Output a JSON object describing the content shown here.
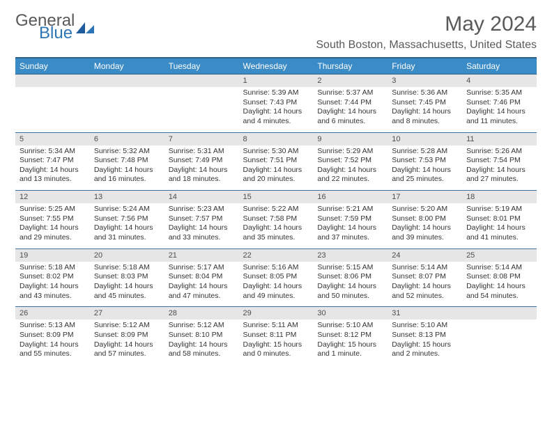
{
  "brand": {
    "part1": "General",
    "part2": "Blue",
    "logo_color": "#2e75b6",
    "text_color": "#595959"
  },
  "title": "May 2024",
  "location": "South Boston, Massachusetts, United States",
  "colors": {
    "header_bg": "#3b8bc7",
    "header_border": "#2e5f86",
    "daynum_bg": "#e6e6e6",
    "page_bg": "#ffffff",
    "text": "#333333"
  },
  "fonts": {
    "title_size": 30,
    "location_size": 16,
    "dow_size": 12,
    "daynum_size": 11,
    "detail_size": 10.5
  },
  "days_of_week": [
    "Sunday",
    "Monday",
    "Tuesday",
    "Wednesday",
    "Thursday",
    "Friday",
    "Saturday"
  ],
  "weeks": [
    {
      "nums": [
        "",
        "",
        "",
        "1",
        "2",
        "3",
        "4"
      ],
      "details": [
        null,
        null,
        null,
        {
          "sunrise": "Sunrise: 5:39 AM",
          "sunset": "Sunset: 7:43 PM",
          "day1": "Daylight: 14 hours",
          "day2": "and 4 minutes."
        },
        {
          "sunrise": "Sunrise: 5:37 AM",
          "sunset": "Sunset: 7:44 PM",
          "day1": "Daylight: 14 hours",
          "day2": "and 6 minutes."
        },
        {
          "sunrise": "Sunrise: 5:36 AM",
          "sunset": "Sunset: 7:45 PM",
          "day1": "Daylight: 14 hours",
          "day2": "and 8 minutes."
        },
        {
          "sunrise": "Sunrise: 5:35 AM",
          "sunset": "Sunset: 7:46 PM",
          "day1": "Daylight: 14 hours",
          "day2": "and 11 minutes."
        }
      ]
    },
    {
      "nums": [
        "5",
        "6",
        "7",
        "8",
        "9",
        "10",
        "11"
      ],
      "details": [
        {
          "sunrise": "Sunrise: 5:34 AM",
          "sunset": "Sunset: 7:47 PM",
          "day1": "Daylight: 14 hours",
          "day2": "and 13 minutes."
        },
        {
          "sunrise": "Sunrise: 5:32 AM",
          "sunset": "Sunset: 7:48 PM",
          "day1": "Daylight: 14 hours",
          "day2": "and 16 minutes."
        },
        {
          "sunrise": "Sunrise: 5:31 AM",
          "sunset": "Sunset: 7:49 PM",
          "day1": "Daylight: 14 hours",
          "day2": "and 18 minutes."
        },
        {
          "sunrise": "Sunrise: 5:30 AM",
          "sunset": "Sunset: 7:51 PM",
          "day1": "Daylight: 14 hours",
          "day2": "and 20 minutes."
        },
        {
          "sunrise": "Sunrise: 5:29 AM",
          "sunset": "Sunset: 7:52 PM",
          "day1": "Daylight: 14 hours",
          "day2": "and 22 minutes."
        },
        {
          "sunrise": "Sunrise: 5:28 AM",
          "sunset": "Sunset: 7:53 PM",
          "day1": "Daylight: 14 hours",
          "day2": "and 25 minutes."
        },
        {
          "sunrise": "Sunrise: 5:26 AM",
          "sunset": "Sunset: 7:54 PM",
          "day1": "Daylight: 14 hours",
          "day2": "and 27 minutes."
        }
      ]
    },
    {
      "nums": [
        "12",
        "13",
        "14",
        "15",
        "16",
        "17",
        "18"
      ],
      "details": [
        {
          "sunrise": "Sunrise: 5:25 AM",
          "sunset": "Sunset: 7:55 PM",
          "day1": "Daylight: 14 hours",
          "day2": "and 29 minutes."
        },
        {
          "sunrise": "Sunrise: 5:24 AM",
          "sunset": "Sunset: 7:56 PM",
          "day1": "Daylight: 14 hours",
          "day2": "and 31 minutes."
        },
        {
          "sunrise": "Sunrise: 5:23 AM",
          "sunset": "Sunset: 7:57 PM",
          "day1": "Daylight: 14 hours",
          "day2": "and 33 minutes."
        },
        {
          "sunrise": "Sunrise: 5:22 AM",
          "sunset": "Sunset: 7:58 PM",
          "day1": "Daylight: 14 hours",
          "day2": "and 35 minutes."
        },
        {
          "sunrise": "Sunrise: 5:21 AM",
          "sunset": "Sunset: 7:59 PM",
          "day1": "Daylight: 14 hours",
          "day2": "and 37 minutes."
        },
        {
          "sunrise": "Sunrise: 5:20 AM",
          "sunset": "Sunset: 8:00 PM",
          "day1": "Daylight: 14 hours",
          "day2": "and 39 minutes."
        },
        {
          "sunrise": "Sunrise: 5:19 AM",
          "sunset": "Sunset: 8:01 PM",
          "day1": "Daylight: 14 hours",
          "day2": "and 41 minutes."
        }
      ]
    },
    {
      "nums": [
        "19",
        "20",
        "21",
        "22",
        "23",
        "24",
        "25"
      ],
      "details": [
        {
          "sunrise": "Sunrise: 5:18 AM",
          "sunset": "Sunset: 8:02 PM",
          "day1": "Daylight: 14 hours",
          "day2": "and 43 minutes."
        },
        {
          "sunrise": "Sunrise: 5:18 AM",
          "sunset": "Sunset: 8:03 PM",
          "day1": "Daylight: 14 hours",
          "day2": "and 45 minutes."
        },
        {
          "sunrise": "Sunrise: 5:17 AM",
          "sunset": "Sunset: 8:04 PM",
          "day1": "Daylight: 14 hours",
          "day2": "and 47 minutes."
        },
        {
          "sunrise": "Sunrise: 5:16 AM",
          "sunset": "Sunset: 8:05 PM",
          "day1": "Daylight: 14 hours",
          "day2": "and 49 minutes."
        },
        {
          "sunrise": "Sunrise: 5:15 AM",
          "sunset": "Sunset: 8:06 PM",
          "day1": "Daylight: 14 hours",
          "day2": "and 50 minutes."
        },
        {
          "sunrise": "Sunrise: 5:14 AM",
          "sunset": "Sunset: 8:07 PM",
          "day1": "Daylight: 14 hours",
          "day2": "and 52 minutes."
        },
        {
          "sunrise": "Sunrise: 5:14 AM",
          "sunset": "Sunset: 8:08 PM",
          "day1": "Daylight: 14 hours",
          "day2": "and 54 minutes."
        }
      ]
    },
    {
      "nums": [
        "26",
        "27",
        "28",
        "29",
        "30",
        "31",
        ""
      ],
      "details": [
        {
          "sunrise": "Sunrise: 5:13 AM",
          "sunset": "Sunset: 8:09 PM",
          "day1": "Daylight: 14 hours",
          "day2": "and 55 minutes."
        },
        {
          "sunrise": "Sunrise: 5:12 AM",
          "sunset": "Sunset: 8:09 PM",
          "day1": "Daylight: 14 hours",
          "day2": "and 57 minutes."
        },
        {
          "sunrise": "Sunrise: 5:12 AM",
          "sunset": "Sunset: 8:10 PM",
          "day1": "Daylight: 14 hours",
          "day2": "and 58 minutes."
        },
        {
          "sunrise": "Sunrise: 5:11 AM",
          "sunset": "Sunset: 8:11 PM",
          "day1": "Daylight: 15 hours",
          "day2": "and 0 minutes."
        },
        {
          "sunrise": "Sunrise: 5:10 AM",
          "sunset": "Sunset: 8:12 PM",
          "day1": "Daylight: 15 hours",
          "day2": "and 1 minute."
        },
        {
          "sunrise": "Sunrise: 5:10 AM",
          "sunset": "Sunset: 8:13 PM",
          "day1": "Daylight: 15 hours",
          "day2": "and 2 minutes."
        },
        null
      ]
    }
  ]
}
